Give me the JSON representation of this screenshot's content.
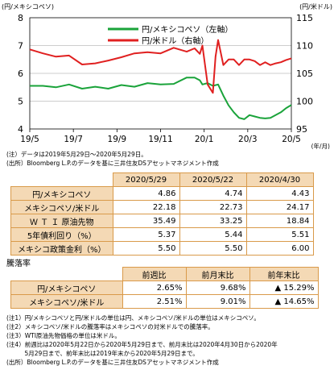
{
  "chart_data": {
    "type": "line",
    "left_axis_label": "(円/メキシコペソ)",
    "right_axis_label": "(円/米ドル)",
    "left_ticks": [
      "8",
      "7",
      "6",
      "5",
      "4"
    ],
    "right_ticks": [
      "115",
      "110",
      "105",
      "100",
      "95"
    ],
    "ylim_left": [
      4,
      8
    ],
    "ylim_right": [
      95,
      115
    ],
    "x_ticks": [
      "19/5",
      "19/7",
      "19/9",
      "19/11",
      "20/1",
      "20/3",
      "20/5"
    ],
    "x_unit": "(年/月)",
    "series": [
      {
        "name": "円/メキシコペソ（左軸）",
        "color": "#1aa33a",
        "axis": "left",
        "x": [
          0,
          0.05,
          0.1,
          0.15,
          0.2,
          0.25,
          0.3,
          0.35,
          0.4,
          0.45,
          0.5,
          0.55,
          0.6,
          0.63,
          0.65,
          0.66,
          0.68,
          0.7,
          0.72,
          0.74,
          0.76,
          0.78,
          0.8,
          0.82,
          0.84,
          0.86,
          0.88,
          0.9,
          0.92,
          0.94,
          0.96,
          0.98,
          1.0
        ],
        "values": [
          5.55,
          5.55,
          5.5,
          5.6,
          5.45,
          5.52,
          5.45,
          5.58,
          5.52,
          5.65,
          5.6,
          5.62,
          5.85,
          5.85,
          5.75,
          5.6,
          5.65,
          5.55,
          5.6,
          5.2,
          4.85,
          4.6,
          4.4,
          4.35,
          4.5,
          4.45,
          4.4,
          4.38,
          4.4,
          4.5,
          4.6,
          4.75,
          4.86
        ]
      },
      {
        "name": "円/米ドル（右軸）",
        "color": "#e02020",
        "axis": "right",
        "x": [
          0,
          0.05,
          0.1,
          0.15,
          0.2,
          0.25,
          0.3,
          0.35,
          0.4,
          0.45,
          0.5,
          0.55,
          0.6,
          0.63,
          0.65,
          0.66,
          0.68,
          0.7,
          0.71,
          0.72,
          0.74,
          0.76,
          0.78,
          0.8,
          0.82,
          0.84,
          0.86,
          0.88,
          0.9,
          0.92,
          0.94,
          0.96,
          0.98,
          1.0
        ],
        "values": [
          109.3,
          108.6,
          108.0,
          108.2,
          106.6,
          106.8,
          107.3,
          107.9,
          108.6,
          108.8,
          108.6,
          109.6,
          108.9,
          109.5,
          108.5,
          110.0,
          103.0,
          101.5,
          108.0,
          111.0,
          106.5,
          107.5,
          107.5,
          106.5,
          107.5,
          107.5,
          107.2,
          106.5,
          107.0,
          106.5,
          106.8,
          107.0,
          107.4,
          107.7
        ]
      }
    ]
  },
  "chart_notes": [
    "(注）データは2019年5月29日～2020年5月29日。",
    "(出所）Bloomberg L.P.のデータを基に三井住友DSアセットマネジメント作成"
  ],
  "table1": {
    "headers": [
      "2020/5/29",
      "2020/5/22",
      "2020/4/30"
    ],
    "rows": [
      {
        "label": "円/メキシコペソ",
        "values": [
          "4.86",
          "4.74",
          "4.43"
        ]
      },
      {
        "label": "メキシコペソ/米ドル",
        "values": [
          "22.18",
          "22.73",
          "24.17"
        ]
      },
      {
        "label": "Ｗ Ｔ Ｉ 原油先物",
        "values": [
          "35.49",
          "33.25",
          "18.84"
        ]
      },
      {
        "label": "5年債利回り（%）",
        "values": [
          "5.37",
          "5.44",
          "5.51"
        ]
      },
      {
        "label": "メキシコ政策金利（%）",
        "values": [
          "5.50",
          "5.50",
          "6.00"
        ]
      }
    ]
  },
  "section_title": "騰落率",
  "table2": {
    "headers": [
      "前週比",
      "前月末比",
      "前年末比"
    ],
    "rows": [
      {
        "label": "円/メキシコペソ",
        "values": [
          "2.65%",
          "9.68%",
          "▲ 15.29%"
        ]
      },
      {
        "label": "メキシコペソ/米ドル",
        "values": [
          "2.51%",
          "9.01%",
          "▲ 14.65%"
        ]
      }
    ]
  },
  "notes": [
    "(注1）円/メキシコペソと円/米ドルの単位は円、メキシコペソ/米ドルの単位はメキシコペソ。",
    "(注2）メキシコペソ/米ドルの騰落率はメキシコペソの対米ドルでの騰落率。",
    "(注3）WTI原油先物価格の単位は米ドル。",
    "(注4）前週比は2020年5月22日から2020年5月29日まで、前月末比は2020年4月30日から2020年",
    "　　　5月29日まで、前年末比は2019年末から2020年5月29日まで。",
    "(出所）Bloomberg L.P.のデータを基に三井住友DSアセットマネジメント作成"
  ]
}
